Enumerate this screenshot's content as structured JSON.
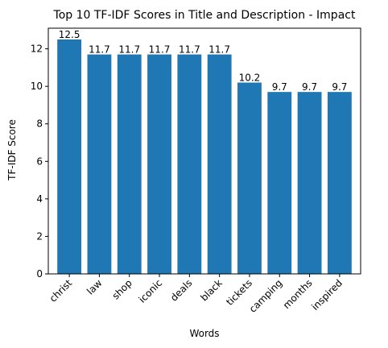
{
  "chart_data": {
    "type": "bar",
    "title": "Top 10 TF-IDF Scores in Title and Description - Impact",
    "xlabel": "Words",
    "ylabel": "TF-IDF Score",
    "categories": [
      "christ",
      "law",
      "shop",
      "iconic",
      "deals",
      "black",
      "tickets",
      "camping",
      "months",
      "inspired"
    ],
    "values": [
      12.5,
      11.7,
      11.7,
      11.7,
      11.7,
      11.7,
      10.2,
      9.7,
      9.7,
      9.7
    ],
    "data_labels": [
      "12.5",
      "11.7",
      "11.7",
      "11.7",
      "11.7",
      "11.7",
      "10.2",
      "9.7",
      "9.7",
      "9.7"
    ],
    "ylim": [
      0,
      13.1
    ],
    "yticks": [
      0,
      2,
      4,
      6,
      8,
      10,
      12
    ],
    "bar_color": "#1f77b4",
    "grid": false,
    "legend": "none"
  }
}
